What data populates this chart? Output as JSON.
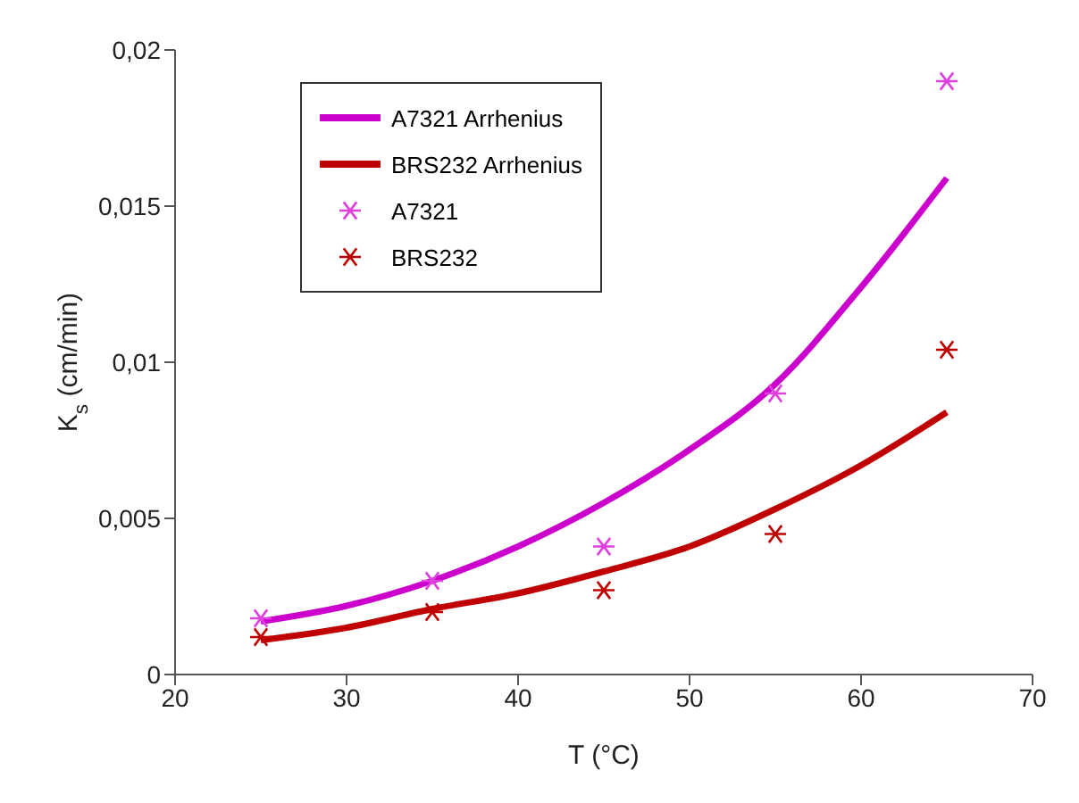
{
  "chart_data": {
    "type": "line",
    "xlabel": "T (°C)",
    "ylabel": "K$_{s}$ (cm/min)",
    "xlim": [
      20,
      70
    ],
    "xticks": [
      20,
      30,
      40,
      50,
      60,
      70
    ],
    "ylim": [
      0,
      0.02
    ],
    "yticks": [
      {
        "value": 0,
        "label": "0"
      },
      {
        "value": 0.005,
        "label": "0,005"
      },
      {
        "value": 0.01,
        "label": "0,01"
      },
      {
        "value": 0.015,
        "label": "0,015"
      },
      {
        "value": 0.02,
        "label": "0,02"
      }
    ],
    "grid": false,
    "legend": "top left",
    "marker": "none",
    "line_style": "solid",
    "series": [
      {
        "name": "A7321 Arrhenius",
        "color": "#cc00cc",
        "x": [
          25,
          30,
          35,
          40,
          45,
          50,
          55,
          60,
          65
        ],
        "values": [
          0.0017,
          0.0022,
          0.003,
          0.0041,
          0.0055,
          0.0072,
          0.0093,
          0.0124,
          0.0159
        ]
      },
      {
        "name": "BRS232 Arrhenius",
        "color": "#c00000",
        "x": [
          25,
          30,
          35,
          40,
          45,
          50,
          55,
          60,
          65
        ],
        "values": [
          0.0011,
          0.0015,
          0.0021,
          0.0026,
          0.0033,
          0.0041,
          0.0053,
          0.0067,
          0.0084
        ]
      },
      {
        "name": "A7321",
        "type": "scatter",
        "marker": "cross",
        "color": "#e040e0",
        "x": [
          25,
          35,
          45,
          55,
          65
        ],
        "values": [
          0.0018,
          0.003,
          0.0041,
          0.009,
          0.019
        ]
      },
      {
        "name": "BRS232",
        "type": "scatter",
        "marker": "cross",
        "color": "#c00000",
        "x": [
          25,
          35,
          45,
          55,
          65
        ],
        "values": [
          0.0012,
          0.002,
          0.0027,
          0.0045,
          0.0104
        ]
      }
    ]
  }
}
